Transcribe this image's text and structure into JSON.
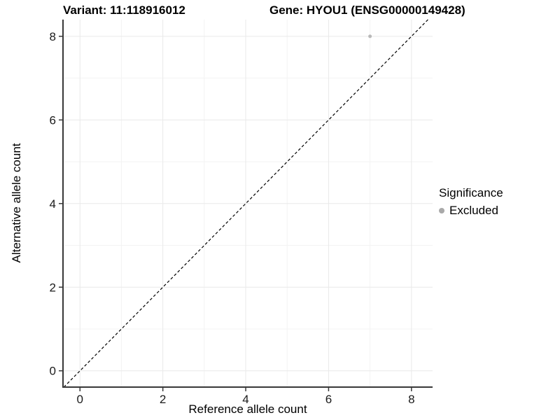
{
  "header": {
    "variant_title": "Variant: 11:118916012",
    "gene_title": "Gene: HYOU1 (ENSG00000149428)"
  },
  "chart_data": {
    "type": "scatter",
    "xlabel": "Reference allele count",
    "ylabel": "Alternative allele count",
    "xlim": [
      -0.41,
      8.51
    ],
    "ylim": [
      -0.39,
      8.4
    ],
    "xticks": [
      0,
      2,
      4,
      6,
      8
    ],
    "yticks": [
      0,
      2,
      4,
      6,
      8
    ],
    "x_minor_gridlines": [
      1,
      3,
      5,
      7
    ],
    "y_minor_gridlines": [
      1,
      3,
      5,
      7
    ],
    "grid": "major+minor",
    "reference_line": {
      "type": "identity y=x",
      "style": "dashed",
      "color": "#000000"
    },
    "series": [
      {
        "name": "Excluded",
        "color": "#b9b9b9",
        "points": [
          [
            7,
            8
          ]
        ]
      }
    ],
    "legend": {
      "position": "right",
      "title": "Significance",
      "entries": [
        {
          "label": "Excluded",
          "color": "#a9a9a9"
        }
      ]
    }
  },
  "style_colors": {
    "axis_line": "#383838",
    "major_grid": "#e9e9e9",
    "minor_grid": "#f3f3f3",
    "tick_label": "#1a1a1a"
  }
}
